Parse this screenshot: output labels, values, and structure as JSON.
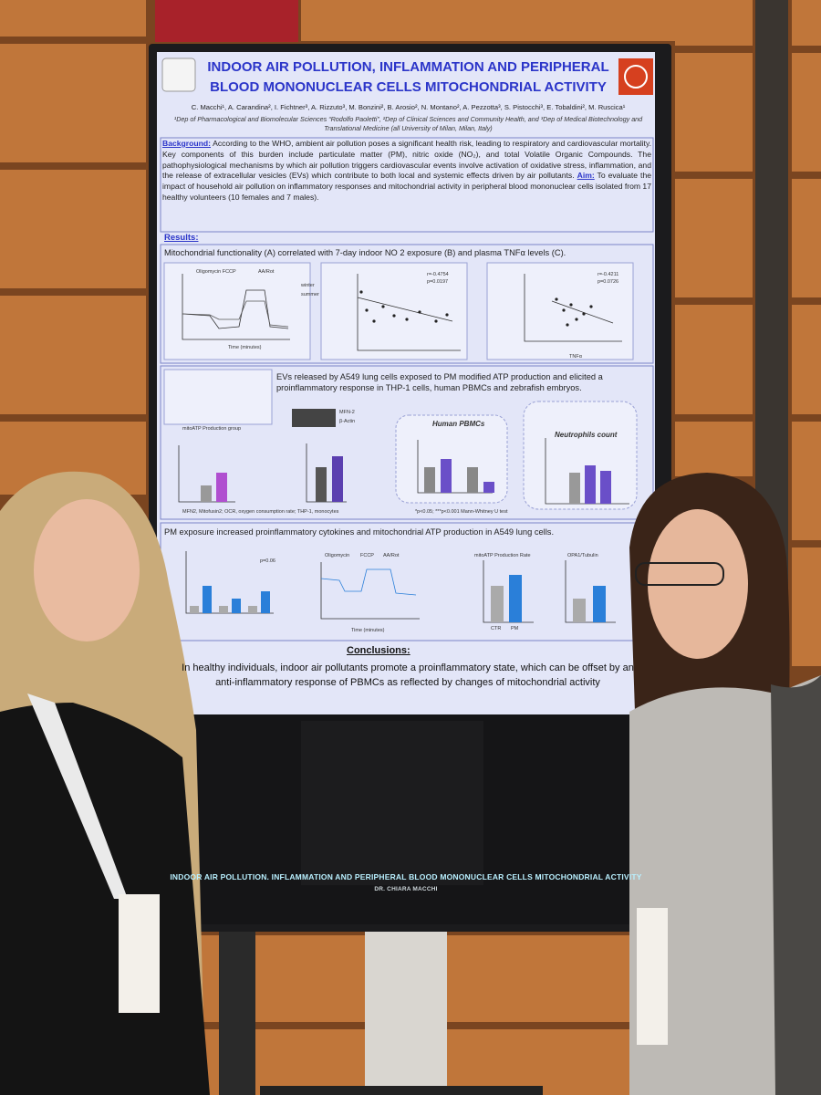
{
  "poster": {
    "title": "INDOOR AIR POLLUTION, INFLAMMATION AND PERIPHERAL BLOOD MONONUCLEAR CELLS MITOCHONDRIAL ACTIVITY",
    "authors": "C. Macchi¹, A. Carandina², I. Fichtner³, A. Rizzuto³, M. Bonzini², B. Arosio², N. Montano², A. Pezzotta³, S. Pistocchi³, E. Tobaldini², M. Ruscica¹",
    "affiliations": "¹Dep of Pharmacological and Biomolecular Sciences “Rodolfo Paoletti”, ²Dep of Clinical Sciences and Community Health, and ³Dep of Medical Biotechnology and Translational Medicine (all University of Milan, Milan, Italy)",
    "background_label": "Background:",
    "background": "According to the WHO, ambient air pollution poses a significant health risk, leading to respiratory and cardiovascular mortality. Key components of this burden include particulate matter (PM), nitric oxide (NO₂), and total Volatile Organic Compounds. The pathophysiological mechanisms by which air pollution triggers cardiovascular events involve activation of oxidative stress, inflammation, and the release of extracellular vesicles (EVs) which contribute to both local and systemic effects driven by air pollutants.",
    "aim_label": "Aim:",
    "aim": "To evaluate the impact of household air pollution on inflammatory responses and mitochondrial activity in peripheral blood mononuclear cells isolated from 17 healthy volunteers (10 females and 7 males).",
    "results_heading": "Results:",
    "sections": [
      {
        "heading": "Mitochondrial functionality (A) correlated with 7-day indoor NO 2 exposure (B) and plasma TNFα levels (C).",
        "labels": [
          "Oligomycin FCCP",
          "AA/Rot",
          "winter",
          "summer",
          "Time (minutes)",
          "r=-0.4754",
          "p=0.0197",
          "r=-0.4211",
          "p=0.0726",
          "TNFα"
        ]
      },
      {
        "heading": "EVs released by A549 lung cells exposed to PM modified ATP production and elicited a proinflammatory response in THP-1 cells, human PBMCs and zebrafish embryos.",
        "labels": [
          "mitoATP Production group",
          "MFN-2",
          "β-Actin",
          "Human PBMCs",
          "Neutrophils count"
        ],
        "footnote": "MFN2, Mitofusin2; OCR, oxygen consumption rate; THP-1, monocytes",
        "stats": "*p<0.05; ***p<0.001 Mann-Whitney U test"
      },
      {
        "heading": "PM exposure increased proinflammatory cytokines and mitochondrial ATP production in A549 lung cells.",
        "labels": [
          "Oligomycin",
          "FCCP",
          "AA/Rot",
          "CTR",
          "PM",
          "p=0.06",
          "mitoATP Production Rate",
          "OPA1/Tubulin",
          "Time (minutes)"
        ]
      }
    ],
    "conclusions_heading": "Conclusions:",
    "conclusions": "In healthy individuals, indoor air pollutants promote a proinflammatory state, which can be offset by an anti-inflammatory response of PBMCs as reflected by changes of mitochondrial activity"
  },
  "screen": {
    "title": "INDOOR AIR POLLUTION. INFLAMMATION AND PERIPHERAL BLOOD MONONUCLEAR CELLS MITOCHONDRIAL ACTIVITY",
    "presenter": "DR. CHIARA MACCHI"
  }
}
